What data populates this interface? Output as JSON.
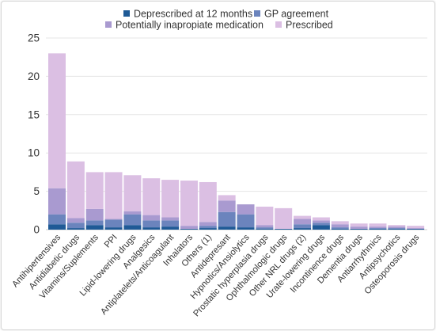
{
  "chart_data": {
    "type": "bar",
    "stacked": true,
    "title": "",
    "xlabel": "",
    "ylabel": "",
    "ylim": [
      0,
      25
    ],
    "yticks": [
      0,
      5,
      10,
      15,
      20,
      25
    ],
    "grid": true,
    "legend_position": "top",
    "categories": [
      "Antihipertensives",
      "Antidiabetic drugs",
      "Vitamins/Suplements",
      "PPI",
      "Lipid-lowering drugs",
      "Analgesics",
      "Antiplatelets/Anticoagulant",
      "Inhalators",
      "Others (1)",
      "Antidepresant",
      "Hypnotics/Ansiolytics",
      "Prostatic hyperplasia drugs",
      "Ophthalmologic drugs",
      "Other NRL drugs (2)",
      "Urate-lowering drugs",
      "Incontinence drugs",
      "Dementia drugs",
      "Antiarrhythmics",
      "Antipsychotics",
      "Osteoporosis drugs"
    ],
    "series": [
      {
        "name": "Deprescribed at 12 months",
        "color": "#1f5a96",
        "values": [
          0.7,
          0.2,
          0.6,
          0.3,
          0.6,
          0.3,
          0.4,
          0.1,
          0.2,
          0.4,
          0.3,
          0.1,
          0.1,
          0.2,
          0.6,
          0.1,
          0.1,
          0.1,
          0.1,
          0.1
        ]
      },
      {
        "name": "GP agreement",
        "color": "#6b84bd",
        "values": [
          1.3,
          0.7,
          0.6,
          1.0,
          1.4,
          0.9,
          0.8,
          0.0,
          0.3,
          1.9,
          1.7,
          0.2,
          0.0,
          0.5,
          0.3,
          0.2,
          0.0,
          0.1,
          0.1,
          0.0
        ]
      },
      {
        "name": "Potentially inapropiate medication",
        "color": "#a99ad0",
        "values": [
          3.4,
          0.6,
          1.5,
          0.1,
          0.4,
          0.7,
          0.4,
          0.4,
          0.5,
          1.5,
          1.3,
          0.3,
          0.0,
          0.7,
          0.3,
          0.4,
          0.3,
          0.2,
          0.2,
          0.1
        ]
      },
      {
        "name": "Prescribed",
        "color": "#dbbfe3",
        "values": [
          17.6,
          7.4,
          4.8,
          6.1,
          4.7,
          4.8,
          4.9,
          5.9,
          5.2,
          0.7,
          0.0,
          2.4,
          2.7,
          0.4,
          0.4,
          0.4,
          0.4,
          0.4,
          0.2,
          0.3
        ]
      }
    ]
  }
}
